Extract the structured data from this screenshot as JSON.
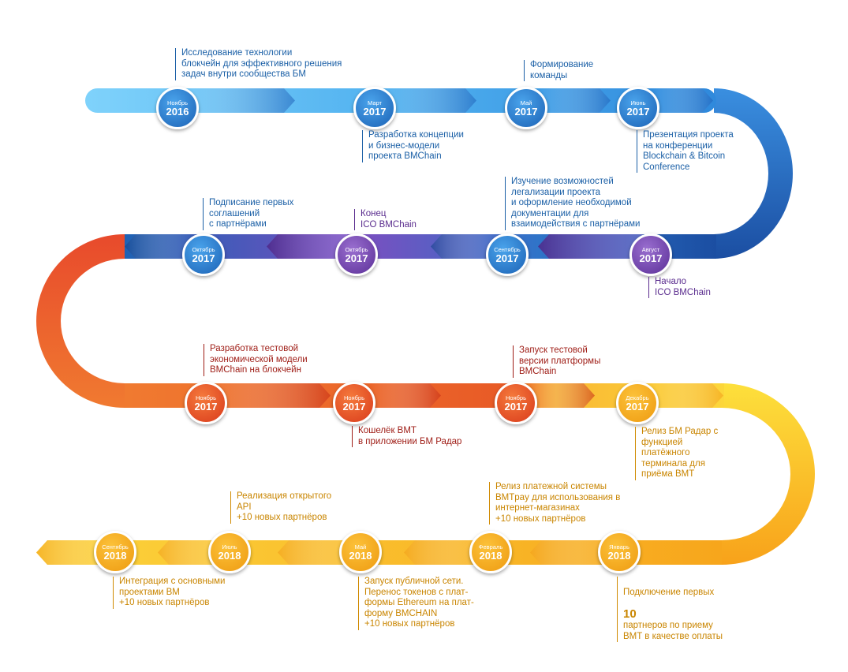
{
  "colors": {
    "blue": "#1a5fa6",
    "purple": "#5a2c8e",
    "red": "#9e1b14",
    "orange": "#c98500"
  },
  "milestones": [
    {
      "date_month": "Ноябрь",
      "date_year": "2016",
      "text": "Исследование технологии\nблокчейн для эффективного решения\nзадач внутри сообщества БМ",
      "color": "blue"
    },
    {
      "date_month": "Март",
      "date_year": "2017",
      "text": "Разработка концепции\nи бизнес-модели\nпроекта BMChain",
      "color": "blue"
    },
    {
      "date_month": "Май",
      "date_year": "2017",
      "text": "Формирование\nкоманды",
      "color": "blue"
    },
    {
      "date_month": "Июнь",
      "date_year": "2017",
      "text": "Презентация проекта\nна конференции\nBlockchain & Bitcoin\nConference",
      "color": "blue"
    },
    {
      "date_month": "Август",
      "date_year": "2017",
      "text": "Начало\nICO BMChain",
      "color": "purple"
    },
    {
      "date_month": "Сентябрь",
      "date_year": "2017",
      "text": "Изучение возможностей\nлегализации проекта\nи оформление необходимой\nдокументации для\nвзаимодействия с партнёрами",
      "color": "blue"
    },
    {
      "date_month": "Октябрь",
      "date_year": "2017",
      "text": "Конец\nICO BMChain",
      "color": "purple"
    },
    {
      "date_month": "Октябрь",
      "date_year": "2017",
      "text": "Подписание первых\nсоглашений\nс партнёрами",
      "color": "blue"
    },
    {
      "date_month": "Ноябрь",
      "date_year": "2017",
      "text": "Разработка тестовой\nэкономической модели\nBMChain на блокчейн",
      "color": "red"
    },
    {
      "date_month": "Ноябрь",
      "date_year": "2017",
      "text": "Кошелёк BMT\nв приложении БМ Радар",
      "color": "red"
    },
    {
      "date_month": "Ноябрь",
      "date_year": "2017",
      "text": "Запуск тестовой\nверсии платформы\nBMChain",
      "color": "red"
    },
    {
      "date_month": "Декабрь",
      "date_year": "2017",
      "text": "Релиз БМ Радар с\nфункцией\nплатёжного\nтерминала для\nприёма BMT",
      "color": "orange"
    },
    {
      "date_month": "Январь",
      "date_year": "2018",
      "text_before": "Подключение первых",
      "text_number": "10",
      "text_after": "партнеров по приему\nBMT в качестве оплаты",
      "color": "orange"
    },
    {
      "date_month": "Февраль",
      "date_year": "2018",
      "text": "Релиз платежной системы\nBMTpay для использования в\nинтернет-магазинах\n+10 новых партнёров",
      "color": "orange"
    },
    {
      "date_month": "Май",
      "date_year": "2018",
      "text": "Запуск публичной сети.\nПеренос токенов с плат-\nформы Ethereum на плат-\nформу BMCHAIN\n+10 новых партнёров",
      "color": "orange"
    },
    {
      "date_month": "Июль",
      "date_year": "2018",
      "text": "Реализация открытого\nAPI\n+10 новых партнёров",
      "color": "orange"
    },
    {
      "date_month": "Сентябрь",
      "date_year": "2018",
      "text": "Интеграция с основными\nпроектами BM\n+10 новых партнёров",
      "color": "orange"
    }
  ]
}
